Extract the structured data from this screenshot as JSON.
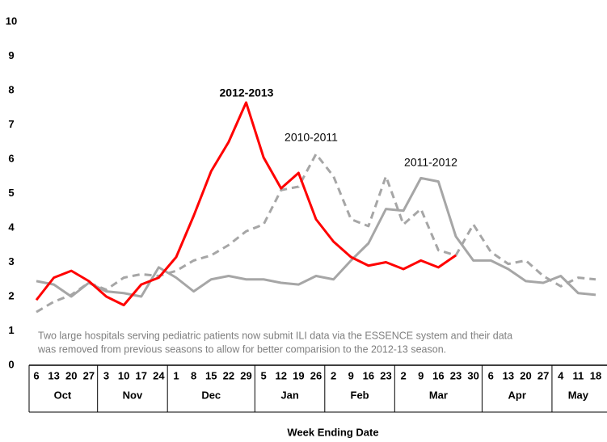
{
  "chart_data": {
    "type": "line",
    "categories": [
      "6",
      "13",
      "20",
      "27",
      "3",
      "10",
      "17",
      "24",
      "1",
      "8",
      "15",
      "22",
      "29",
      "5",
      "12",
      "19",
      "26",
      "2",
      "9",
      "16",
      "23",
      "2",
      "9",
      "16",
      "23",
      "30",
      "6",
      "13",
      "20",
      "27",
      "4",
      "11",
      "18"
    ],
    "months": [
      "Oct",
      "Oct",
      "Oct",
      "Oct",
      "Nov",
      "Nov",
      "Nov",
      "Nov",
      "Dec",
      "Dec",
      "Dec",
      "Dec",
      "Dec",
      "Jan",
      "Jan",
      "Jan",
      "Jan",
      "Feb",
      "Feb",
      "Feb",
      "Feb",
      "Mar",
      "Mar",
      "Mar",
      "Mar",
      "Mar",
      "Apr",
      "Apr",
      "Apr",
      "Apr",
      "May",
      "May",
      "May"
    ],
    "x_label": "Week Ending Date",
    "ylim": [
      0,
      10
    ],
    "yticks": [
      0,
      1,
      2,
      3,
      4,
      5,
      6,
      7,
      8,
      9,
      10
    ],
    "annotation": [
      "Two large hospitals serving pediatric patients now submit ILI data via the ESSENCE system and their data",
      "was removed  from previous seasons to allow for better comparision to the 2012-13 season."
    ],
    "series": [
      {
        "name": "2012-2013",
        "color": "#ff0000",
        "dashed": false,
        "values": [
          1.9,
          2.55,
          2.75,
          2.45,
          2.0,
          1.75,
          2.35,
          2.55,
          3.15,
          4.35,
          5.65,
          6.5,
          7.65,
          6.05,
          5.15,
          5.6,
          4.25,
          3.6,
          3.15,
          2.9,
          3.0,
          2.8,
          3.05,
          2.85,
          3.2,
          null,
          null,
          null,
          null,
          null,
          null,
          null,
          null
        ]
      },
      {
        "name": "2010-2011",
        "color": "#a6a6a6",
        "dashed": true,
        "values": [
          1.55,
          1.85,
          2.05,
          2.4,
          2.2,
          2.55,
          2.65,
          2.6,
          2.75,
          3.05,
          3.2,
          3.5,
          3.9,
          4.1,
          5.1,
          5.2,
          6.15,
          5.5,
          4.25,
          4.05,
          5.5,
          4.1,
          4.55,
          3.35,
          3.2,
          4.1,
          3.3,
          2.95,
          3.05,
          2.6,
          2.3,
          2.55,
          2.5
        ]
      },
      {
        "name": "2011-2012",
        "color": "#a6a6a6",
        "dashed": false,
        "values": [
          2.45,
          2.35,
          2.0,
          2.4,
          2.15,
          2.1,
          2.0,
          2.85,
          2.55,
          2.15,
          2.5,
          2.6,
          2.5,
          2.5,
          2.4,
          2.35,
          2.6,
          2.5,
          3.05,
          3.55,
          4.55,
          4.5,
          5.45,
          5.35,
          3.75,
          3.05,
          3.05,
          2.8,
          2.45,
          2.4,
          2.6,
          2.1,
          2.05
        ]
      }
    ]
  }
}
